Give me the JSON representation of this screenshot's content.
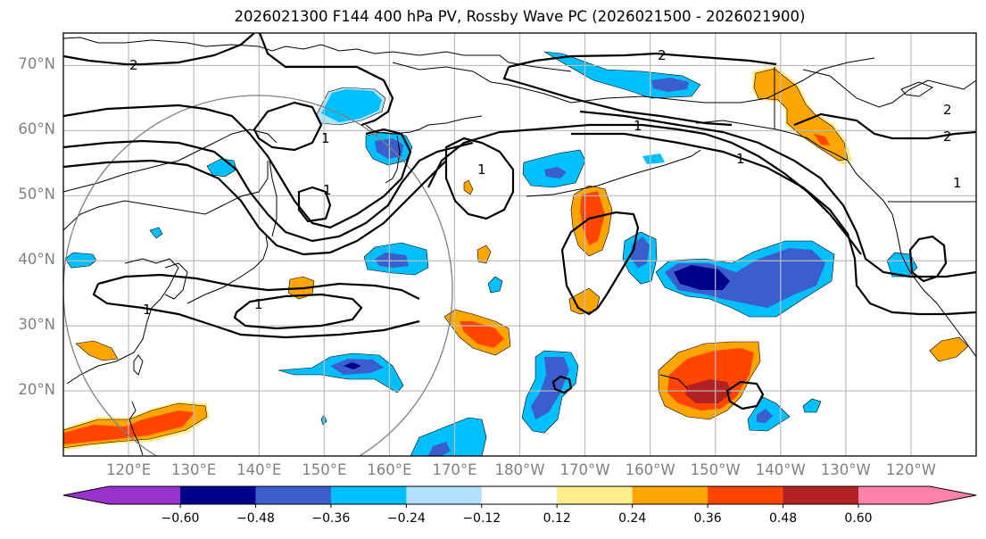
{
  "title": "2026021300 F144 400 hPa PV, Rossby Wave PC (2026021500 - 2026021900)",
  "axes": {
    "lat_labels": [
      "70°N",
      "60°N",
      "50°N",
      "40°N",
      "30°N",
      "20°N"
    ],
    "lon_labels": [
      "120°E",
      "130°E",
      "140°E",
      "150°E",
      "160°E",
      "170°E",
      "180°W",
      "170°W",
      "160°W",
      "150°W",
      "140°W",
      "130°W",
      "120°W"
    ],
    "lat_values": [
      70,
      60,
      50,
      40,
      30,
      20
    ],
    "lon_values": [
      120,
      130,
      140,
      150,
      160,
      170,
      180,
      190,
      200,
      210,
      220,
      230,
      240
    ],
    "lat_range": [
      10,
      75
    ],
    "lon_range": [
      110,
      250
    ],
    "gridlines": true
  },
  "colorbar": {
    "extend": "both",
    "tick_labels": [
      "−0.60",
      "−0.48",
      "−0.36",
      "−0.24",
      "−0.12",
      "0.12",
      "0.24",
      "0.36",
      "0.48",
      "0.60"
    ],
    "levels": [
      -0.6,
      -0.48,
      -0.36,
      -0.24,
      -0.12,
      0.12,
      0.24,
      0.36,
      0.48,
      0.6
    ],
    "colors": [
      "#9932cc",
      "#00008b",
      "#3a5fcd",
      "#00bfff",
      "#b0e2ff",
      "#ffffff",
      "#ffec8b",
      "#ffa500",
      "#ff4500",
      "#b22222",
      "#ff82ab"
    ]
  },
  "contour_labels": {
    "pv_2": "2",
    "pv_1": "1"
  },
  "circle_feature": "grey great-circle centered near 140°E 35°N"
}
